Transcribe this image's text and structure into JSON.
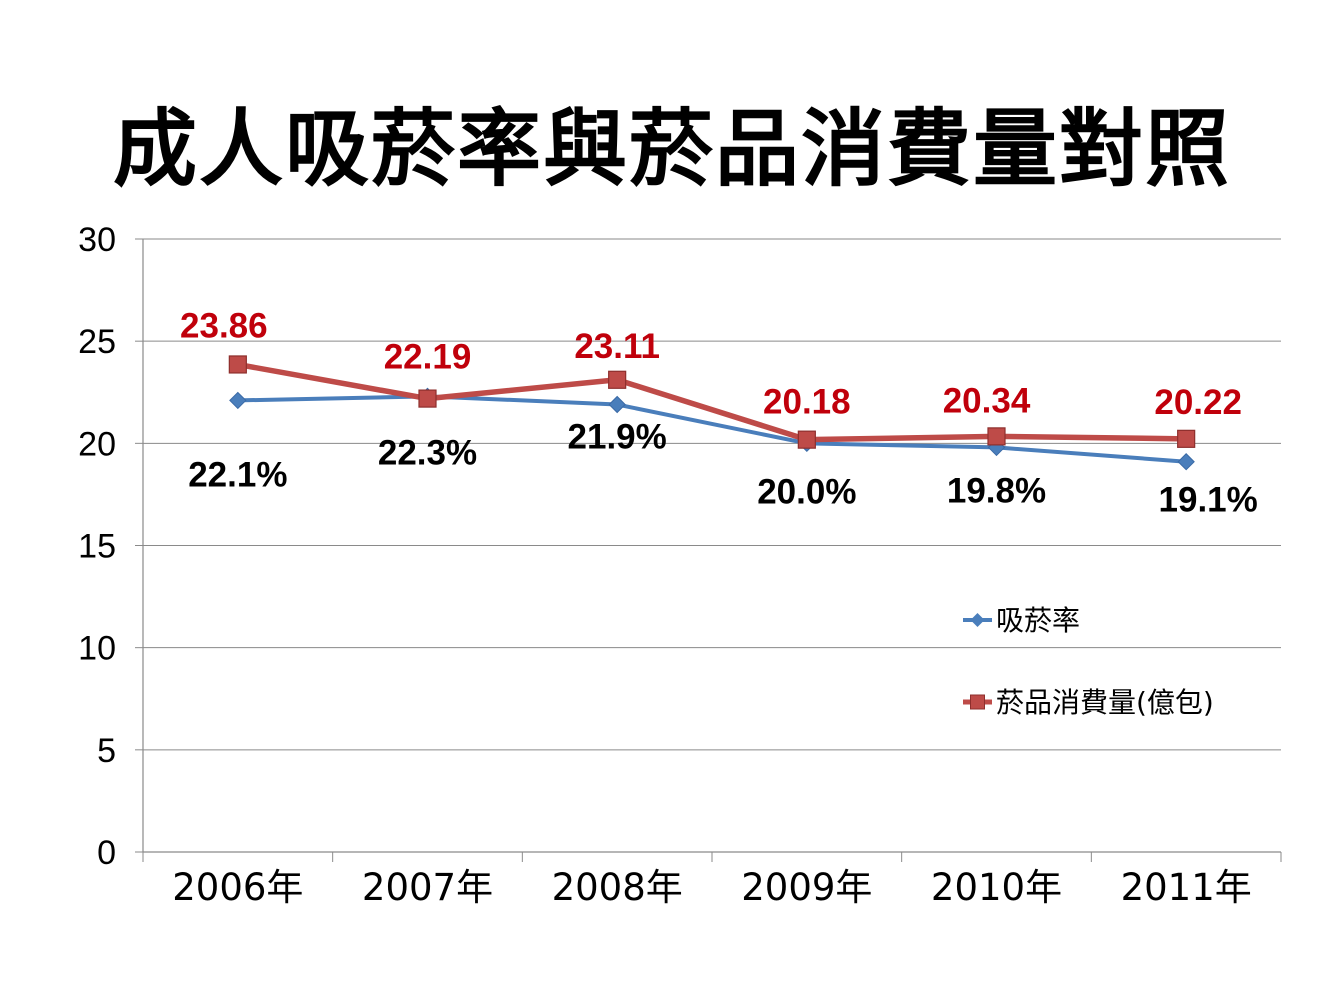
{
  "chart_data": {
    "type": "line",
    "title": "成人吸菸率與菸品消費量對照",
    "categories": [
      "2006年",
      "2007年",
      "2008年",
      "2009年",
      "2010年",
      "2011年"
    ],
    "ylim": [
      0,
      30
    ],
    "yticks": [
      "0",
      "5",
      "10",
      "15",
      "20",
      "25",
      "30"
    ],
    "grid": true,
    "legend_position": "right",
    "series": [
      {
        "name": "吸菸率",
        "color": "#4a7ebb",
        "marker": "diamond",
        "values": [
          22.1,
          22.3,
          21.9,
          20.0,
          19.8,
          19.1
        ],
        "labels": [
          "22.1%",
          "22.3%",
          "21.9%",
          "20.0%",
          "19.8%",
          "19.1%"
        ]
      },
      {
        "name": "菸品消費量(億包)",
        "color": "#be4b48",
        "marker": "square",
        "values": [
          23.86,
          22.19,
          23.11,
          20.18,
          20.34,
          20.22
        ],
        "labels": [
          "23.86",
          "22.19",
          "23.11",
          "20.18",
          "20.34",
          "20.22"
        ]
      }
    ]
  }
}
